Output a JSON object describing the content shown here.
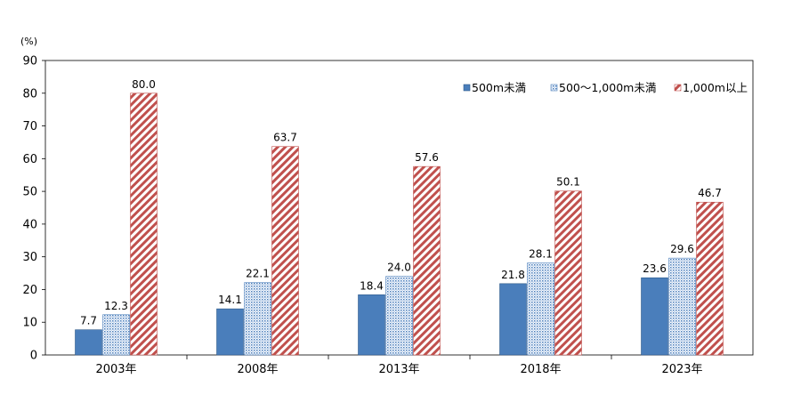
{
  "chart_data": {
    "type": "bar",
    "title": "",
    "unit_label": "(%)",
    "xlabel": "",
    "ylabel": "",
    "ylim": [
      0,
      90
    ],
    "yticks": [
      0,
      10,
      20,
      30,
      40,
      50,
      60,
      70,
      80,
      90
    ],
    "categories": [
      "2003年",
      "2008年",
      "2013年",
      "2018年",
      "2023年"
    ],
    "legend_position": "top-right",
    "series": [
      {
        "name": "500m未満",
        "color": "#4a7ebb",
        "fill": "solid",
        "values": [
          7.7,
          14.1,
          18.4,
          21.8,
          23.6
        ],
        "labels": [
          "7.7",
          "14.1",
          "18.4",
          "21.8",
          "23.6"
        ]
      },
      {
        "name": "500～1,000m未満",
        "color": "#4a7ebb",
        "fill": "dotted",
        "values": [
          12.3,
          22.1,
          24.0,
          28.1,
          29.6
        ],
        "labels": [
          "12.3",
          "22.1",
          "24.0",
          "28.1",
          "29.6"
        ]
      },
      {
        "name": "1,000m以上",
        "color": "#c0504d",
        "fill": "hatched",
        "values": [
          80.0,
          63.7,
          57.6,
          50.1,
          46.7
        ],
        "labels": [
          "80.0",
          "63.7",
          "57.6",
          "50.1",
          "46.7"
        ]
      }
    ]
  }
}
